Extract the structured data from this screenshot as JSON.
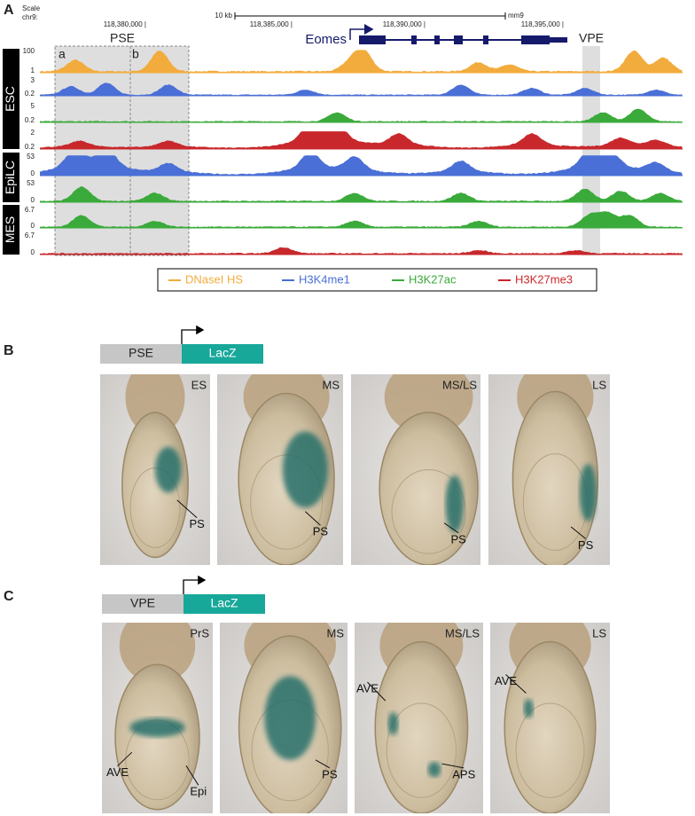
{
  "panel_a": {
    "label": "A",
    "scale": {
      "scale_label": "Scale",
      "chromosome": "chr9:",
      "bar": "10 kb",
      "assembly": "mm9",
      "coordinates": [
        "118,380,000 |",
        "118,385,000 |",
        "118,390,000 |",
        "118,395,000 |"
      ]
    },
    "gene": "Eomes",
    "regions": [
      "PSE",
      "VPE"
    ],
    "subregions": [
      "a",
      "b"
    ],
    "cell_types": [
      "ESC",
      "EpiLC",
      "MES"
    ],
    "tracks": [
      {
        "max": "100",
        "min": "1",
        "color": "#f2ac3d"
      },
      {
        "max": "3",
        "min": "0.2",
        "color": "#4a6fd6"
      },
      {
        "max": "5",
        "min": "0.2",
        "color": "#3aaa3a"
      },
      {
        "max": "2",
        "min": "0.2",
        "color": "#c8282c"
      },
      {
        "max": "53",
        "min": "0",
        "color": "#4a6fd6"
      },
      {
        "max": "53",
        "min": "0",
        "color": "#3aaa3a"
      },
      {
        "max": "6.7",
        "min": "0",
        "color": "#3aaa3a"
      },
      {
        "max": "6.7",
        "min": "0",
        "color": "#c8282c"
      }
    ],
    "legend": [
      {
        "name": "DNaseI HS",
        "color": "#f2ac3d"
      },
      {
        "name": "H3K4me1",
        "color": "#4a6fd6"
      },
      {
        "name": "H3K27ac",
        "color": "#3aaa3a"
      },
      {
        "name": "H3K27me3",
        "color": "#c8282c"
      }
    ]
  },
  "panel_b": {
    "label": "B",
    "construct": {
      "enhancer": "PSE",
      "reporter": "LacZ"
    },
    "images": [
      {
        "stage": "ES",
        "annotations": [
          "PS"
        ]
      },
      {
        "stage": "MS",
        "annotations": [
          "PS"
        ]
      },
      {
        "stage": "MS/LS",
        "annotations": [
          "PS"
        ]
      },
      {
        "stage": "LS",
        "annotations": [
          "PS"
        ]
      }
    ]
  },
  "panel_c": {
    "label": "C",
    "construct": {
      "enhancer": "VPE",
      "reporter": "LacZ"
    },
    "images": [
      {
        "stage": "PrS",
        "annotations": [
          "AVE",
          "Epi"
        ]
      },
      {
        "stage": "MS",
        "annotations": [
          "PS"
        ]
      },
      {
        "stage": "MS/LS",
        "annotations": [
          "AVE",
          "APS"
        ]
      },
      {
        "stage": "LS",
        "annotations": [
          "AVE"
        ]
      }
    ]
  }
}
